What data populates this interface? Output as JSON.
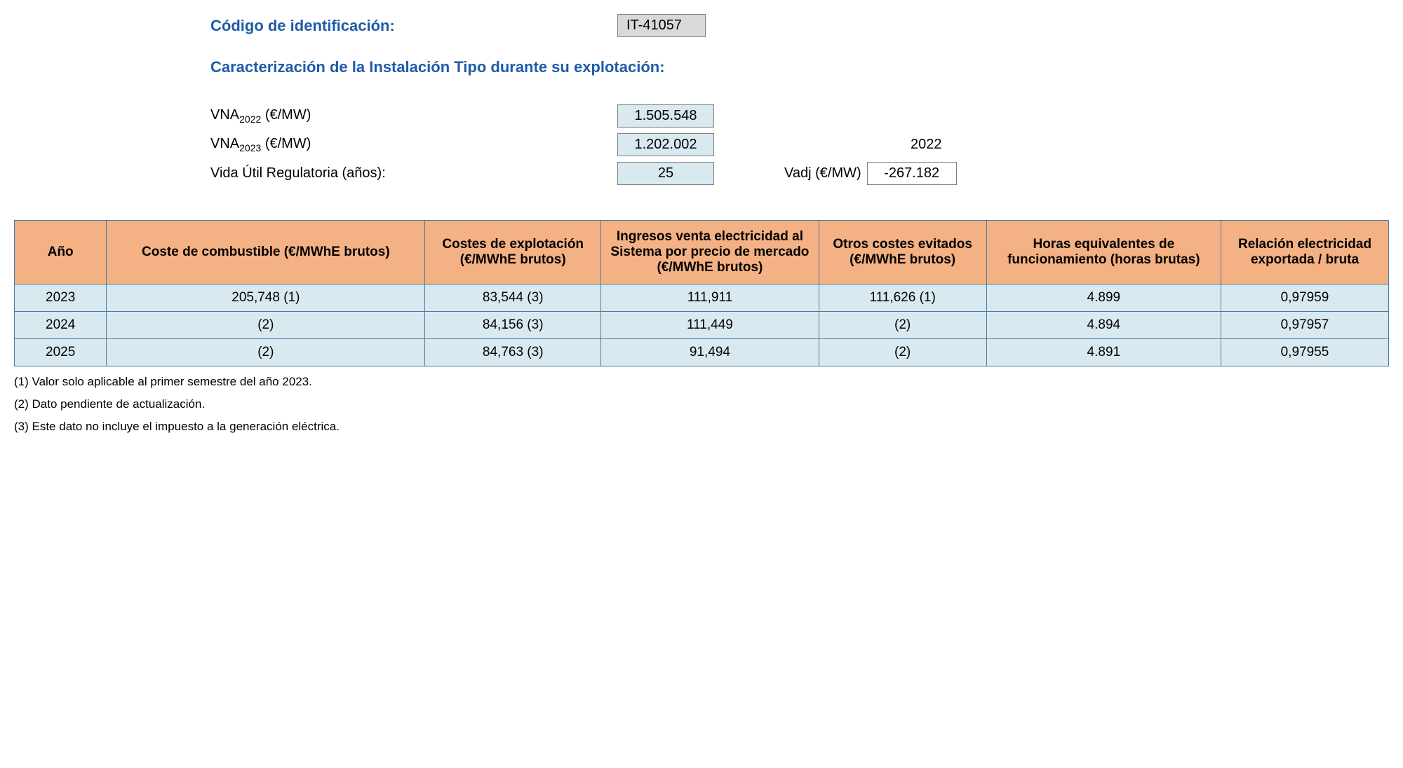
{
  "header": {
    "code_label": "Código de identificación:",
    "code_value": "IT-41057",
    "subtitle": "Caracterización de la Instalación Tipo durante su explotación:"
  },
  "params": {
    "vna2022_label_prefix": "VNA",
    "vna2022_sub": "2022",
    "vna2022_unit": " (€/MW)",
    "vna2022_value": "1.505.548",
    "vna2023_label_prefix": "VNA",
    "vna2023_sub": "2023",
    "vna2023_unit": " (€/MW)",
    "vna2023_value": "1.202.002",
    "vida_label": "Vida Útil Regulatoria (años):",
    "vida_value": "25",
    "year_right": "2022",
    "vadj_label": "Vadj (€/MW)",
    "vadj_value": "-267.182"
  },
  "table": {
    "headers": {
      "h0": "Año",
      "h1": "Coste de combustible (€/MWhE brutos)",
      "h2": "Costes de explotación (€/MWhE brutos)",
      "h3": "Ingresos venta electricidad al Sistema por precio de mercado (€/MWhE brutos)",
      "h4": "Otros costes evitados (€/MWhE brutos)",
      "h5": "Horas equivalentes de funcionamiento (horas brutas)",
      "h6": "Relación electricidad exportada / bruta"
    },
    "col_widths": {
      "c0": "110px",
      "c1": "380px",
      "c2": "210px",
      "c3": "260px",
      "c4": "200px",
      "c5": "280px",
      "c6": "200px"
    },
    "rows": [
      {
        "c0": "2023",
        "c1": "205,748 (1)",
        "c2": "83,544 (3)",
        "c3": "111,911",
        "c4": "111,626 (1)",
        "c5": "4.899",
        "c6": "0,97959"
      },
      {
        "c0": "2024",
        "c1": "(2)",
        "c2": "84,156 (3)",
        "c3": "111,449",
        "c4": "(2)",
        "c5": "4.894",
        "c6": "0,97957"
      },
      {
        "c0": "2025",
        "c1": "(2)",
        "c2": "84,763 (3)",
        "c3": "91,494",
        "c4": "(2)",
        "c5": "4.891",
        "c6": "0,97955"
      }
    ]
  },
  "footnotes": {
    "n1": "(1) Valor solo aplicable al primer semestre del año 2023.",
    "n2": "(2) Dato pendiente de actualización.",
    "n3": "(3) Este dato no incluye el impuesto a la generación eléctrica."
  },
  "colors": {
    "header_bg": "#f4b183",
    "cell_bg": "#d9e9f0",
    "border": "#4a7ba6",
    "blue_text": "#1f5ca8",
    "code_bg": "#d9d9d9"
  }
}
